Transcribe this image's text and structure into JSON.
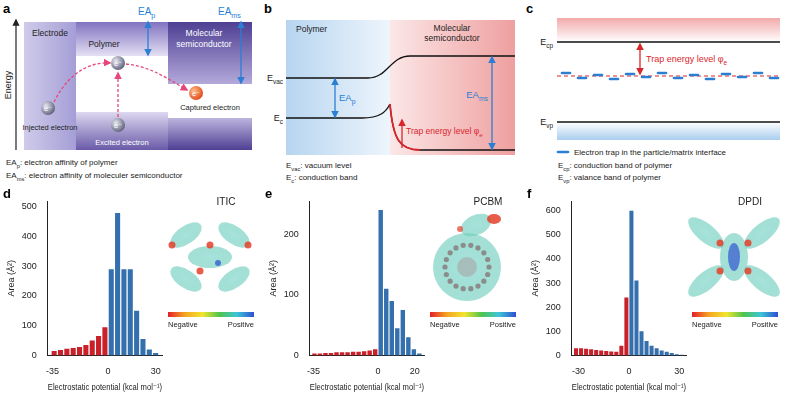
{
  "panels": {
    "a": {
      "letter": "a",
      "axis_label": "Energy",
      "regions": {
        "electrode": "Electrode",
        "polymer": "Polymer",
        "molecular": "Molecular semiconductor"
      },
      "ea_labels": [
        {
          "text": "EA",
          "sub": "p"
        },
        {
          "text": "EA",
          "sub": "ms"
        }
      ],
      "electron_symbol": "e⁻",
      "electron_labels": {
        "injected": "Injected electron",
        "excited": "Excited electron",
        "captured": "Captured electron"
      },
      "legend": [
        {
          "text": "EA",
          "sub": "p",
          "rest": ": electron affinity of polymer"
        },
        {
          "text": "EA",
          "sub": "ms",
          "rest": ": electron affinity of moleculer semiconductor"
        }
      ]
    },
    "b": {
      "letter": "b",
      "regions": {
        "polymer": "Polymer",
        "molecular": "Molecular semiconductor"
      },
      "levels": [
        {
          "text": "E",
          "sub": "vac"
        },
        {
          "text": "E",
          "sub": "c"
        }
      ],
      "ea_labels": [
        {
          "text": "EA",
          "sub": "p"
        },
        {
          "text": "EA",
          "sub": "ms"
        }
      ],
      "trap": {
        "text": "Trap energy level φ",
        "sub": "e"
      },
      "legend": [
        {
          "text": "E",
          "sub": "vac",
          "rest": ": vacuum level"
        },
        {
          "text": "E",
          "sub": "c",
          "rest": ": conduction band"
        }
      ]
    },
    "c": {
      "letter": "c",
      "levels": [
        {
          "text": "E",
          "sub": "cp"
        },
        {
          "text": "E",
          "sub": "vp"
        }
      ],
      "trap": {
        "text": "Trap energy level φ",
        "sub": "e"
      },
      "trap_legend": "Electron trap in the particle/matrix interface",
      "legend": [
        {
          "text": "E",
          "sub": "cp",
          "rest": ": conduction band of polymer"
        },
        {
          "text": "E",
          "sub": "vp",
          "rest": ": valance band of polymer"
        }
      ]
    }
  },
  "chart_data": [
    {
      "type": "histogram",
      "panel": "d",
      "annotations": {
        "molecule": "ITIC",
        "colorbar": [
          "Negative",
          "Positive"
        ]
      },
      "x_label": "Electrostatic potential (kcal mol⁻¹)",
      "y_label": "Area (Å²)",
      "bins": [
        -36,
        -32,
        -28,
        -24,
        -20,
        -16,
        -12,
        -8,
        -4,
        0,
        4,
        8,
        12,
        16,
        20,
        24,
        28,
        32
      ],
      "values": [
        15,
        18,
        22,
        25,
        28,
        35,
        50,
        65,
        95,
        290,
        480,
        290,
        290,
        150,
        55,
        20,
        8
      ],
      "colors": [
        "#c9202a",
        "#c9202a",
        "#c9202a",
        "#c9202a",
        "#c9202a",
        "#c9202a",
        "#c9202a",
        "#c9202a",
        "#c9202a",
        "#3470ad",
        "#3470ad",
        "#3470ad",
        "#3470ad",
        "#3470ad",
        "#3470ad",
        "#3470ad",
        "#3470ad"
      ],
      "xlim": [
        -38,
        34
      ],
      "xticks": [
        -35,
        0,
        30
      ],
      "ylim": [
        0,
        520
      ],
      "yticks": [
        0,
        100,
        200,
        300,
        400,
        500
      ],
      "grid": false
    },
    {
      "type": "histogram",
      "panel": "e",
      "annotations": {
        "molecule": "PCBM",
        "colorbar": [
          "Negative",
          "Positive"
        ]
      },
      "x_label": "Electrostatic potential (kcal mol⁻¹)",
      "y_label": "Area (Å²)",
      "bins": [
        -36,
        -33,
        -30,
        -27,
        -24,
        -21,
        -18,
        -15,
        -12,
        -9,
        -6,
        -3,
        0,
        3,
        6,
        9,
        12,
        15,
        18,
        21,
        24
      ],
      "values": [
        3,
        3,
        4,
        4,
        5,
        5,
        5,
        6,
        6,
        7,
        8,
        10,
        240,
        110,
        90,
        45,
        75,
        30,
        10,
        3
      ],
      "colors": [
        "#c9202a",
        "#c9202a",
        "#c9202a",
        "#c9202a",
        "#c9202a",
        "#c9202a",
        "#c9202a",
        "#c9202a",
        "#c9202a",
        "#c9202a",
        "#c9202a",
        "#c9202a",
        "#3470ad",
        "#3470ad",
        "#3470ad",
        "#3470ad",
        "#3470ad",
        "#3470ad",
        "#3470ad",
        "#3470ad"
      ],
      "xlim": [
        -37,
        25
      ],
      "xticks": [
        -35,
        0,
        20
      ],
      "ylim": [
        0,
        255
      ],
      "yticks": [
        0,
        100,
        200
      ],
      "grid": false
    },
    {
      "type": "histogram",
      "panel": "f",
      "annotations": {
        "molecule": "DPDI",
        "colorbar": [
          "Negative",
          "Positive"
        ]
      },
      "x_label": "Electrostatic potential (kcal mol⁻¹)",
      "y_label": "Area (Å²)",
      "bins": [
        -33,
        -30,
        -27,
        -24,
        -21,
        -18,
        -15,
        -12,
        -9,
        -6,
        -3,
        0,
        3,
        6,
        9,
        12,
        15,
        18,
        21,
        24,
        27,
        30,
        33
      ],
      "values": [
        30,
        30,
        28,
        25,
        22,
        20,
        18,
        16,
        15,
        40,
        240,
        600,
        310,
        100,
        60,
        40,
        30,
        20,
        15,
        10,
        5,
        3
      ],
      "colors": [
        "#c9202a",
        "#c9202a",
        "#c9202a",
        "#c9202a",
        "#c9202a",
        "#c9202a",
        "#c9202a",
        "#c9202a",
        "#c9202a",
        "#c9202a",
        "#c9202a",
        "#3470ad",
        "#3470ad",
        "#3470ad",
        "#3470ad",
        "#3470ad",
        "#3470ad",
        "#3470ad",
        "#3470ad",
        "#3470ad",
        "#3470ad",
        "#3470ad"
      ],
      "xlim": [
        -34,
        34
      ],
      "xticks": [
        -30,
        0,
        30
      ],
      "ylim": [
        0,
        640
      ],
      "yticks": [
        0,
        100,
        200,
        300,
        400,
        500,
        600
      ],
      "grid": false
    }
  ]
}
